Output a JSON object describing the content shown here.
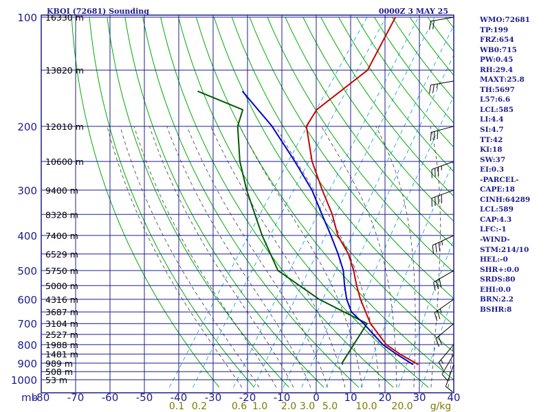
{
  "header": {
    "station": "KBOI (72681) Sounding",
    "time": "0000Z  3 MAY 25"
  },
  "chart_data": {
    "type": "line",
    "title": "KBOI (72681) Sounding",
    "subtitle": "0000Z  3 MAY 25",
    "x_unit": "C",
    "y_unit": "mb",
    "xlim": [
      -80,
      40
    ],
    "ylim": [
      1000,
      100
    ],
    "pressure_levels": [
      100,
      200,
      300,
      400,
      500,
      600,
      700,
      800,
      900,
      1000
    ],
    "pressure_tick_labels": [
      "100",
      "200",
      "300",
      "400",
      "500",
      "600",
      "700",
      "800",
      "900",
      "1000"
    ],
    "temp_ticks": [
      -80,
      -70,
      -60,
      -50,
      -40,
      -30,
      -20,
      -10,
      0,
      10,
      20,
      30,
      40
    ],
    "temp_tick_labels": [
      "-80",
      "-70",
      "-60",
      "-50",
      "-40",
      "-30",
      "-20",
      "-10",
      "0",
      "10",
      "20",
      "30",
      "40"
    ],
    "mixing_ratio_labels": [
      "0.1",
      "0.2",
      "0.6",
      "1.0",
      "2.0",
      "3.0",
      "5.0",
      "10.0",
      "20.0",
      "g/kg"
    ],
    "height_labels": [
      {
        "p": 100,
        "label": "16330 m"
      },
      {
        "p": 140,
        "label": "13820 m"
      },
      {
        "p": 200,
        "label": "12010 m"
      },
      {
        "p": 250,
        "label": "10600 m"
      },
      {
        "p": 300,
        "label": "9400 m"
      },
      {
        "p": 350,
        "label": "8328 m"
      },
      {
        "p": 400,
        "label": "7400 m"
      },
      {
        "p": 450,
        "label": "6529 m"
      },
      {
        "p": 500,
        "label": "5750 m"
      },
      {
        "p": 550,
        "label": "5000 m"
      },
      {
        "p": 600,
        "label": "4316 m"
      },
      {
        "p": 650,
        "label": "3687 m"
      },
      {
        "p": 700,
        "label": "3104 m"
      },
      {
        "p": 750,
        "label": "2527 m"
      },
      {
        "p": 800,
        "label": "1988 m"
      },
      {
        "p": 850,
        "label": "1481 m"
      },
      {
        "p": 900,
        "label": "989 m"
      },
      {
        "p": 950,
        "label": "508 m"
      },
      {
        "p": 1000,
        "label": "53 m"
      }
    ],
    "series": [
      {
        "name": "temperature",
        "color": "#c80000",
        "points": [
          {
            "p": 908,
            "t": 26.5
          },
          {
            "p": 850,
            "t": 19
          },
          {
            "p": 800,
            "t": 13
          },
          {
            "p": 700,
            "t": 4
          },
          {
            "p": 600,
            "t": -4
          },
          {
            "p": 550,
            "t": -8
          },
          {
            "p": 500,
            "t": -12
          },
          {
            "p": 450,
            "t": -17
          },
          {
            "p": 400,
            "t": -24
          },
          {
            "p": 350,
            "t": -30
          },
          {
            "p": 300,
            "t": -38
          },
          {
            "p": 250,
            "t": -47
          },
          {
            "p": 200,
            "t": -56
          },
          {
            "p": 180,
            "t": -56.5
          },
          {
            "p": 140,
            "t": -50
          },
          {
            "p": 100,
            "t": -53
          }
        ]
      },
      {
        "name": "dewpoint",
        "color": "#005a00",
        "points": [
          {
            "p": 908,
            "t": 4.5
          },
          {
            "p": 900,
            "t": 4
          },
          {
            "p": 700,
            "t": 3
          },
          {
            "p": 600,
            "t": -16
          },
          {
            "p": 500,
            "t": -34
          },
          {
            "p": 400,
            "t": -46
          },
          {
            "p": 300,
            "t": -60
          },
          {
            "p": 250,
            "t": -68
          },
          {
            "p": 200,
            "t": -76
          },
          {
            "p": 180,
            "t": -78
          },
          {
            "p": 160,
            "t": -95
          }
        ]
      },
      {
        "name": "parcel",
        "color": "#0000c8",
        "points": [
          {
            "p": 908,
            "t": 25
          },
          {
            "p": 850,
            "t": 18
          },
          {
            "p": 800,
            "t": 12
          },
          {
            "p": 700,
            "t": 2
          },
          {
            "p": 650,
            "t": -4
          },
          {
            "p": 600,
            "t": -8
          },
          {
            "p": 550,
            "t": -11.5
          },
          {
            "p": 500,
            "t": -15
          },
          {
            "p": 450,
            "t": -20
          },
          {
            "p": 400,
            "t": -26
          },
          {
            "p": 350,
            "t": -33
          },
          {
            "p": 300,
            "t": -41
          },
          {
            "p": 250,
            "t": -52
          },
          {
            "p": 200,
            "t": -66
          },
          {
            "p": 160,
            "t": -82
          }
        ]
      }
    ],
    "grid": true
  },
  "wind_barbs": [
    {
      "p": 908,
      "dir": 200,
      "spd": 10
    },
    {
      "p": 850,
      "dir": 210,
      "spd": 10
    },
    {
      "p": 800,
      "dir": 220,
      "spd": 15
    },
    {
      "p": 700,
      "dir": 230,
      "spd": 20
    },
    {
      "p": 600,
      "dir": 235,
      "spd": 25
    },
    {
      "p": 500,
      "dir": 240,
      "spd": 30
    },
    {
      "p": 400,
      "dir": 245,
      "spd": 35
    },
    {
      "p": 300,
      "dir": 250,
      "spd": 40
    },
    {
      "p": 250,
      "dir": 250,
      "spd": 35
    },
    {
      "p": 200,
      "dir": 255,
      "spd": 30
    },
    {
      "p": 150,
      "dir": 260,
      "spd": 25
    },
    {
      "p": 100,
      "dir": 260,
      "spd": 20
    }
  ],
  "indices": [
    "WMO:72681",
    "TP:199",
    "FRZ:654",
    "WB0:715",
    "PW:0.45",
    "RH:29.4",
    "MAXT:25.8",
    "TH:5697",
    "L57:6.6",
    "LCL:585",
    "LI:4.4",
    "SI:4.7",
    "TT:42",
    "KI:18",
    "SW:37",
    "EI:0.3",
    "-PARCEL-",
    "CAPE:18",
    "CINH:64289",
    "LCL:589",
    "CAP:4.3",
    "LFC:-1",
    "-WIND-",
    "STM:214/10",
    "HEL:-0",
    "SHR+:0.0",
    "SRDS:80",
    "EHI:0.0",
    "BRN:2.2",
    "BSHR:8"
  ],
  "colors": {
    "frame": "#1c1c8c",
    "dry_adiabat": "#00aa00",
    "moist_adiabat": "#3a3a3a",
    "mixing_ratio": "#0099cc",
    "mixing_label": "#7a7a00"
  }
}
